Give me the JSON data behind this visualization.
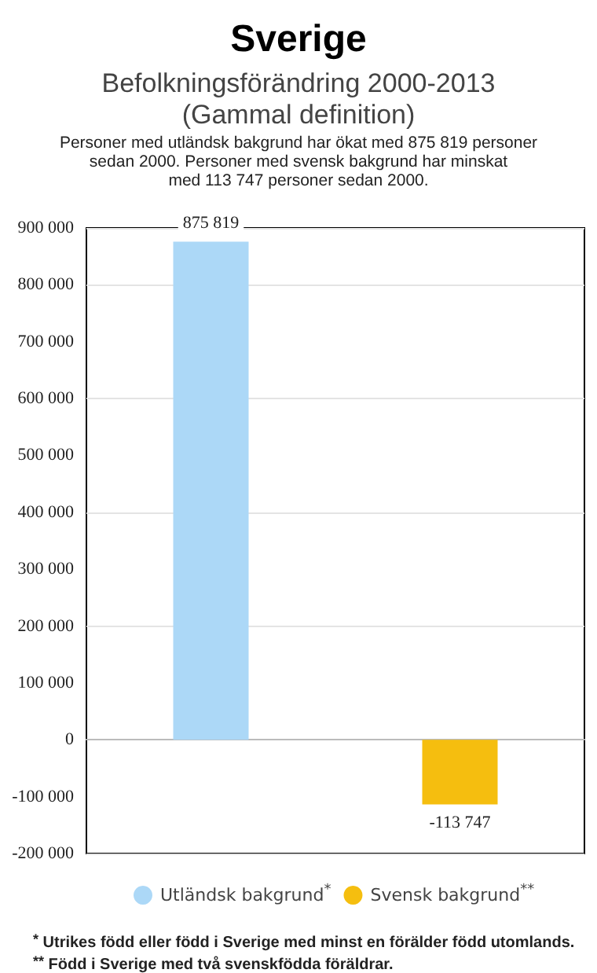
{
  "chart_data": {
    "type": "bar",
    "title": "Sverige",
    "subtitle": "Befolkningsförändring 2000-2013\n(Gammal definition)",
    "categories": [
      null,
      null
    ],
    "series": [
      {
        "name": "Utländsk bakgrund$^{*}$",
        "color": "#acd8f7",
        "values": [
          875819,
          null
        ],
        "value_labels": [
          "875 819",
          null
        ]
      },
      {
        "name": "Svensk bakgrund$^{**}$",
        "color": "#f5be0f",
        "values": [
          null,
          -113747
        ],
        "value_labels": [
          null,
          "-113 747"
        ]
      }
    ],
    "ylim": [
      -200000,
      900000
    ],
    "yticks": [
      {
        "value": -200000,
        "label": "-200 000"
      },
      {
        "value": -100000,
        "label": "-100 000"
      },
      {
        "value": 0,
        "label": "0"
      },
      {
        "value": 100000,
        "label": "100 000"
      },
      {
        "value": 200000,
        "label": "200 000"
      },
      {
        "value": 300000,
        "label": "300 000"
      },
      {
        "value": 400000,
        "label": "400 000"
      },
      {
        "value": 500000,
        "label": "500 000"
      },
      {
        "value": 600000,
        "label": "600 000"
      },
      {
        "value": 700000,
        "label": "700 000"
      },
      {
        "value": 800000,
        "label": "800 000"
      },
      {
        "value": 900000,
        "label": "900 000"
      }
    ],
    "grid": "y",
    "legend": "bottom",
    "annotations": [
      "Personer med utländsk bakgrund har ökat med 875 819 personer\nsedan 2000. Personer med svensk bakgrund har minskat\nmed 113 747 personer sedan 2000.",
      "$^{*}$ Utrikes född eller född i Sverige med minst en förälder född utomlands.",
      "$^{**}$ Född i Sverige med två svenskfödda föräldrar."
    ]
  }
}
